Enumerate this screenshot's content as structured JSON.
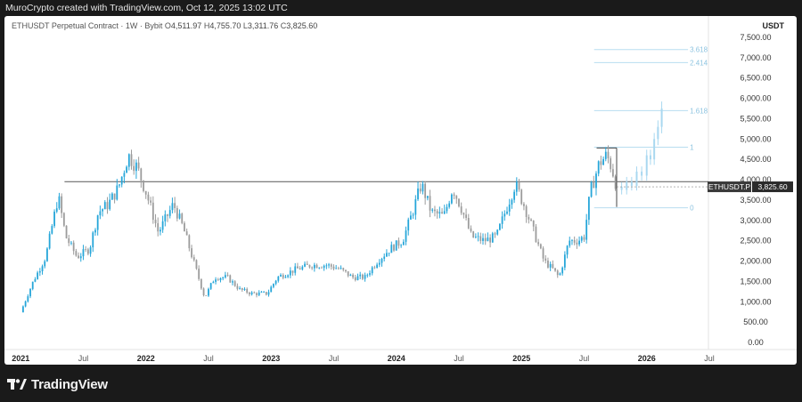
{
  "header": {
    "attribution": "MuroCrypto created with TradingView.com, Oct 12, 2025 13:02 UTC"
  },
  "symbol_info": {
    "name": "ETHUSDT Perpetual Contract · 1W · Bybit",
    "open_label": "O",
    "open": "4,511.97",
    "high_label": "H",
    "high": "4,755.70",
    "low_label": "L",
    "low": "3,311.76",
    "close_label": "C",
    "close": "3,825.60"
  },
  "price_axis": {
    "currency": "USDT",
    "labels": [
      "7,500.00",
      "7,000.00",
      "6,500.00",
      "6,000.00",
      "5,500.00",
      "5,000.00",
      "4,500.00",
      "4,000.00",
      "3,500.00",
      "3,000.00",
      "2,500.00",
      "2,000.00",
      "1,500.00",
      "1,000.00",
      "500.00",
      "0.00"
    ]
  },
  "time_axis": {
    "labels": [
      "2021",
      "Jul",
      "2022",
      "Jul",
      "2023",
      "Jul",
      "2024",
      "Jul",
      "2025",
      "Jul",
      "2026",
      "Jul"
    ]
  },
  "price_tag": {
    "symbol": "ETHUSDT.P",
    "value": "3,825.60"
  },
  "fib_levels": [
    {
      "label": "3.618",
      "price": 7200
    },
    {
      "label": "2.414",
      "price": 6880
    },
    {
      "label": "1.618",
      "price": 5700
    },
    {
      "label": "1",
      "price": 4800
    },
    {
      "label": "0",
      "price": 3310
    }
  ],
  "colors": {
    "up": "#26a6d9",
    "down": "#9c9c9c",
    "projection": "#a9d8f0",
    "horizontal_line": "#6b6b6b"
  },
  "chart_data": {
    "type": "candlestick",
    "title": "ETHUSDT Perpetual Contract · 1W · Bybit",
    "ylabel": "USDT",
    "ylim": [
      0,
      7500
    ],
    "x_ticks": [
      "2021",
      "Jul",
      "2022",
      "Jul",
      "2023",
      "Jul",
      "2024",
      "Jul",
      "2025",
      "Jul",
      "2026",
      "Jul"
    ],
    "support_resistance_line": 3950,
    "weekly_closes": [
      {
        "x": 2021.0,
        "y": 740
      },
      {
        "x": 2021.1,
        "y": 1500
      },
      {
        "x": 2021.2,
        "y": 2100
      },
      {
        "x": 2021.3,
        "y": 3600
      },
      {
        "x": 2021.36,
        "y": 2600
      },
      {
        "x": 2021.45,
        "y": 2100
      },
      {
        "x": 2021.55,
        "y": 2300
      },
      {
        "x": 2021.62,
        "y": 3200
      },
      {
        "x": 2021.7,
        "y": 3400
      },
      {
        "x": 2021.78,
        "y": 3800
      },
      {
        "x": 2021.86,
        "y": 4600
      },
      {
        "x": 2021.93,
        "y": 4300
      },
      {
        "x": 2022.0,
        "y": 3700
      },
      {
        "x": 2022.1,
        "y": 2700
      },
      {
        "x": 2022.22,
        "y": 3400
      },
      {
        "x": 2022.3,
        "y": 2800
      },
      {
        "x": 2022.4,
        "y": 1800
      },
      {
        "x": 2022.47,
        "y": 1100
      },
      {
        "x": 2022.55,
        "y": 1600
      },
      {
        "x": 2022.65,
        "y": 1600
      },
      {
        "x": 2022.75,
        "y": 1300
      },
      {
        "x": 2022.85,
        "y": 1200
      },
      {
        "x": 2022.97,
        "y": 1200
      },
      {
        "x": 2023.05,
        "y": 1600
      },
      {
        "x": 2023.2,
        "y": 1800
      },
      {
        "x": 2023.32,
        "y": 1900
      },
      {
        "x": 2023.45,
        "y": 1900
      },
      {
        "x": 2023.55,
        "y": 1800
      },
      {
        "x": 2023.65,
        "y": 1600
      },
      {
        "x": 2023.75,
        "y": 1600
      },
      {
        "x": 2023.85,
        "y": 2000
      },
      {
        "x": 2023.95,
        "y": 2300
      },
      {
        "x": 2024.05,
        "y": 2500
      },
      {
        "x": 2024.13,
        "y": 3200
      },
      {
        "x": 2024.2,
        "y": 3900
      },
      {
        "x": 2024.28,
        "y": 3200
      },
      {
        "x": 2024.38,
        "y": 3100
      },
      {
        "x": 2024.45,
        "y": 3800
      },
      {
        "x": 2024.52,
        "y": 3300
      },
      {
        "x": 2024.6,
        "y": 2600
      },
      {
        "x": 2024.7,
        "y": 2500
      },
      {
        "x": 2024.8,
        "y": 2600
      },
      {
        "x": 2024.88,
        "y": 3300
      },
      {
        "x": 2024.95,
        "y": 3900
      },
      {
        "x": 2025.03,
        "y": 3300
      },
      {
        "x": 2025.1,
        "y": 2700
      },
      {
        "x": 2025.18,
        "y": 2000
      },
      {
        "x": 2025.25,
        "y": 1800
      },
      {
        "x": 2025.3,
        "y": 1600
      },
      {
        "x": 2025.38,
        "y": 2500
      },
      {
        "x": 2025.45,
        "y": 2500
      },
      {
        "x": 2025.5,
        "y": 2600
      },
      {
        "x": 2025.55,
        "y": 3700
      },
      {
        "x": 2025.62,
        "y": 4400
      },
      {
        "x": 2025.68,
        "y": 4600
      },
      {
        "x": 2025.72,
        "y": 4300
      },
      {
        "x": 2025.76,
        "y": 3826
      }
    ]
  }
}
